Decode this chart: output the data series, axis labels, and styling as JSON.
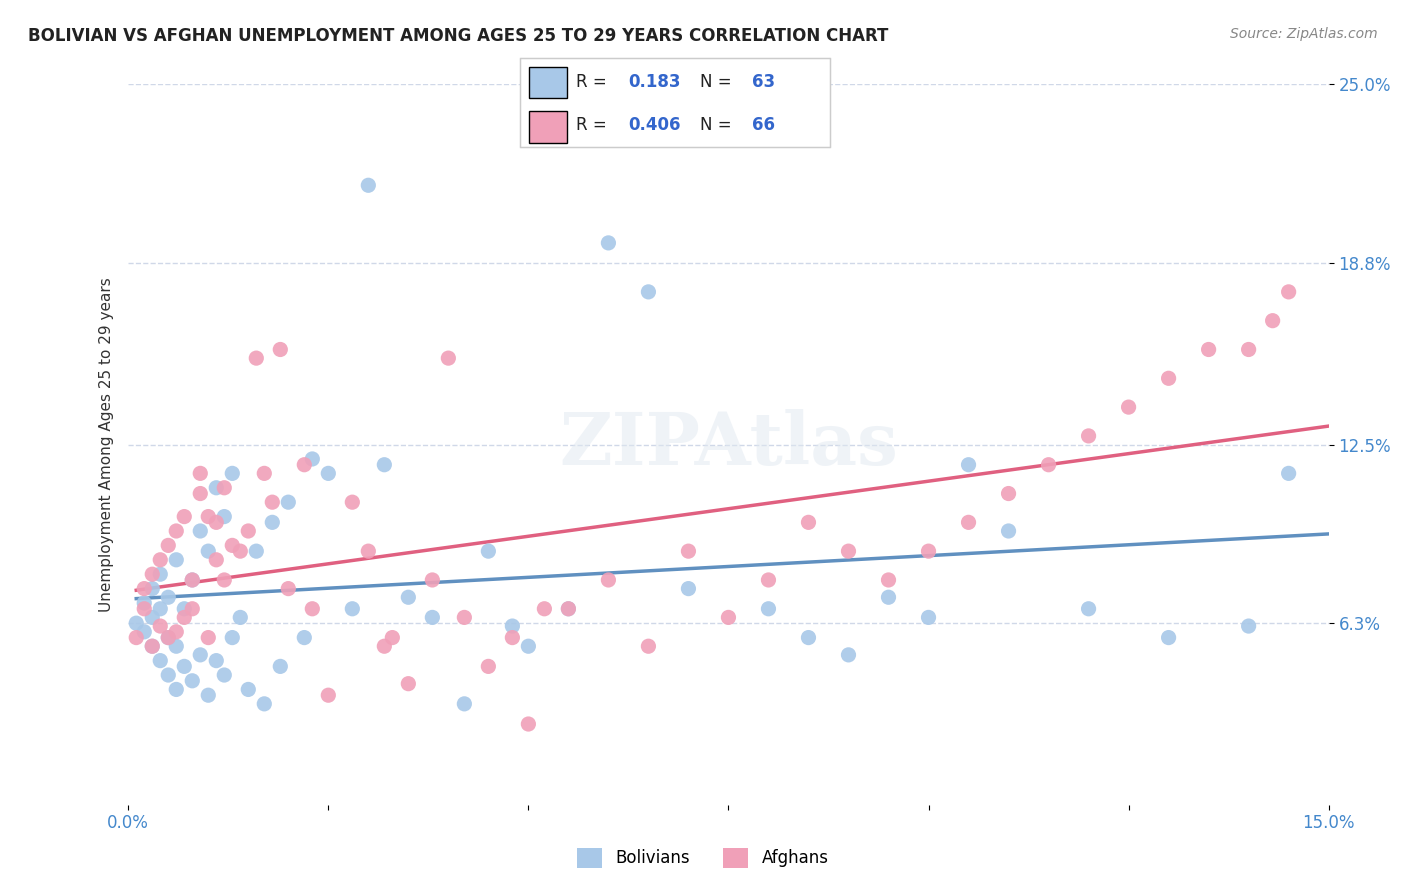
{
  "title": "BOLIVIAN VS AFGHAN UNEMPLOYMENT AMONG AGES 25 TO 29 YEARS CORRELATION CHART",
  "source": "Source: ZipAtlas.com",
  "xlabel": "",
  "ylabel": "Unemployment Among Ages 25 to 29 years",
  "xlim": [
    0.0,
    0.15
  ],
  "ylim": [
    0.0,
    0.25
  ],
  "x_ticks": [
    0.0,
    0.15
  ],
  "x_tick_labels": [
    "0.0%",
    "15.0%"
  ],
  "y_ticks": [
    0.063,
    0.125,
    0.188,
    0.25
  ],
  "y_tick_labels": [
    "6.3%",
    "12.5%",
    "18.8%",
    "25.0%"
  ],
  "bolivians_R": 0.183,
  "bolivians_N": 63,
  "afghans_R": 0.406,
  "afghans_N": 66,
  "bolivian_color": "#a8c8e8",
  "afghan_color": "#f0a0b8",
  "bolivian_line_color": "#6090c0",
  "afghan_line_color": "#e06080",
  "background_color": "#ffffff",
  "grid_color": "#d0d8e8",
  "watermark": "ZIPAtlas",
  "bolivians_x": [
    0.001,
    0.002,
    0.002,
    0.003,
    0.003,
    0.003,
    0.004,
    0.004,
    0.004,
    0.005,
    0.005,
    0.005,
    0.006,
    0.006,
    0.006,
    0.007,
    0.007,
    0.008,
    0.008,
    0.009,
    0.009,
    0.01,
    0.01,
    0.011,
    0.011,
    0.012,
    0.012,
    0.013,
    0.013,
    0.014,
    0.015,
    0.016,
    0.017,
    0.018,
    0.019,
    0.02,
    0.022,
    0.023,
    0.025,
    0.028,
    0.03,
    0.032,
    0.035,
    0.038,
    0.042,
    0.045,
    0.048,
    0.05,
    0.055,
    0.06,
    0.065,
    0.07,
    0.08,
    0.085,
    0.09,
    0.095,
    0.1,
    0.105,
    0.11,
    0.12,
    0.13,
    0.14,
    0.145
  ],
  "bolivians_y": [
    0.063,
    0.06,
    0.07,
    0.055,
    0.065,
    0.075,
    0.05,
    0.068,
    0.08,
    0.045,
    0.058,
    0.072,
    0.04,
    0.055,
    0.085,
    0.048,
    0.068,
    0.043,
    0.078,
    0.052,
    0.095,
    0.038,
    0.088,
    0.05,
    0.11,
    0.045,
    0.1,
    0.058,
    0.115,
    0.065,
    0.04,
    0.088,
    0.035,
    0.098,
    0.048,
    0.105,
    0.058,
    0.12,
    0.115,
    0.068,
    0.215,
    0.118,
    0.072,
    0.065,
    0.035,
    0.088,
    0.062,
    0.055,
    0.068,
    0.195,
    0.178,
    0.075,
    0.068,
    0.058,
    0.052,
    0.072,
    0.065,
    0.118,
    0.095,
    0.068,
    0.058,
    0.062,
    0.115
  ],
  "afghans_x": [
    0.001,
    0.002,
    0.002,
    0.003,
    0.003,
    0.004,
    0.004,
    0.005,
    0.005,
    0.006,
    0.006,
    0.007,
    0.007,
    0.008,
    0.008,
    0.009,
    0.009,
    0.01,
    0.01,
    0.011,
    0.011,
    0.012,
    0.012,
    0.013,
    0.014,
    0.015,
    0.016,
    0.017,
    0.018,
    0.019,
    0.02,
    0.022,
    0.023,
    0.025,
    0.028,
    0.03,
    0.032,
    0.033,
    0.035,
    0.038,
    0.04,
    0.042,
    0.045,
    0.048,
    0.05,
    0.052,
    0.055,
    0.06,
    0.065,
    0.07,
    0.075,
    0.08,
    0.085,
    0.09,
    0.095,
    0.1,
    0.105,
    0.11,
    0.115,
    0.12,
    0.125,
    0.13,
    0.135,
    0.14,
    0.143,
    0.145
  ],
  "afghans_y": [
    0.058,
    0.068,
    0.075,
    0.055,
    0.08,
    0.062,
    0.085,
    0.058,
    0.09,
    0.06,
    0.095,
    0.065,
    0.1,
    0.068,
    0.078,
    0.108,
    0.115,
    0.058,
    0.1,
    0.085,
    0.098,
    0.078,
    0.11,
    0.09,
    0.088,
    0.095,
    0.155,
    0.115,
    0.105,
    0.158,
    0.075,
    0.118,
    0.068,
    0.038,
    0.105,
    0.088,
    0.055,
    0.058,
    0.042,
    0.078,
    0.155,
    0.065,
    0.048,
    0.058,
    0.028,
    0.068,
    0.068,
    0.078,
    0.055,
    0.088,
    0.065,
    0.078,
    0.098,
    0.088,
    0.078,
    0.088,
    0.098,
    0.108,
    0.118,
    0.128,
    0.138,
    0.148,
    0.158,
    0.158,
    0.168,
    0.178
  ]
}
